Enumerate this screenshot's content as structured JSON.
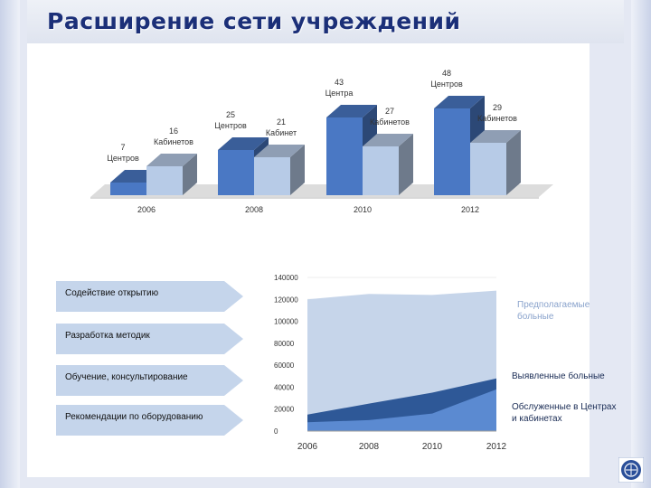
{
  "title": "Расширение сети учреждений",
  "arrows": [
    {
      "label": "Содействие открытию"
    },
    {
      "label": "Разработка методик"
    },
    {
      "label": "Обучение, консультирование"
    },
    {
      "label": "Рекомендации по оборудованию"
    }
  ],
  "legend": {
    "expected": "Предполагаемые больные",
    "detected": "Выявленные больные",
    "served": "Обслуженные в Центрах и кабинетах"
  },
  "colors": {
    "centers": "#4a78c4",
    "cabinets": "#b7cbe7",
    "area_expected": "#c6d5ea",
    "area_detected": "#2e5897",
    "area_served": "#5b8ad1",
    "legend_expected": "#8aa3cc",
    "legend_dark": "#1a2c55"
  },
  "chart_data": [
    {
      "type": "bar",
      "categories": [
        "2006",
        "2008",
        "2010",
        "2012"
      ],
      "ylim": [
        0,
        50
      ],
      "series": [
        {
          "values": [
            7,
            25,
            43,
            48
          ],
          "labels": [
            "7 Центров",
            "25 Центров",
            "43 Центра",
            "48 Центров"
          ]
        },
        {
          "values": [
            16,
            21,
            27,
            29
          ],
          "labels": [
            "16 Кабинетов",
            "21 Кабинет",
            "27 Кабинетов",
            "29 Кабинетов"
          ]
        }
      ]
    },
    {
      "type": "area",
      "x": [
        "2006",
        "2008",
        "2010",
        "2012"
      ],
      "ylim": [
        0,
        140000
      ],
      "yticks": [
        "0",
        "20000",
        "40000",
        "60000",
        "80000",
        "100000",
        "120000",
        "140000"
      ],
      "series": [
        {
          "values": [
            120000,
            125000,
            124000,
            128000
          ]
        },
        {
          "values": [
            15000,
            25000,
            35000,
            48000
          ]
        },
        {
          "values": [
            8000,
            10000,
            16000,
            38000
          ]
        }
      ]
    }
  ]
}
